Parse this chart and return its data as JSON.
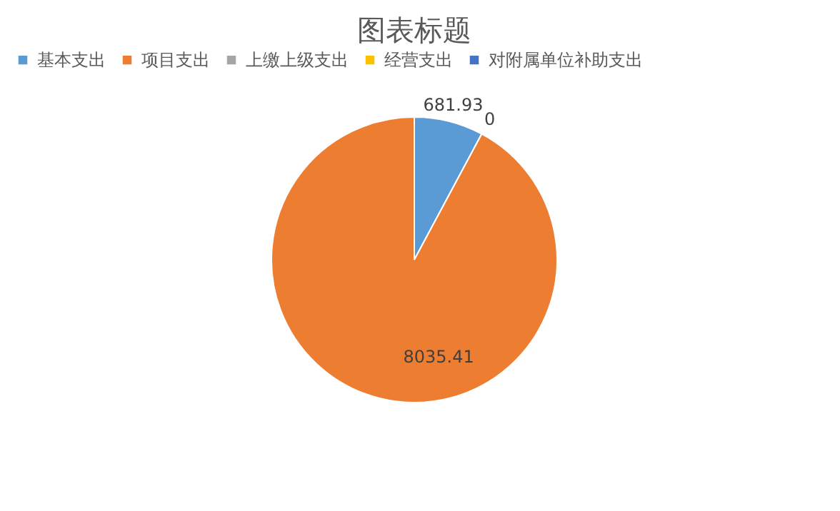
{
  "chart_data": {
    "type": "pie",
    "title": "图表标题",
    "categories": [
      "基本支出",
      "项目支出",
      "上缴上级支出",
      "经营支出",
      "对附属单位补助支出"
    ],
    "values": [
      681.93,
      8035.41,
      0,
      0,
      0
    ],
    "value_labels": [
      "681.93",
      "8035.41",
      "0",
      null,
      null
    ],
    "colors": [
      "#5b9bd5",
      "#ed7d31",
      "#a5a5a5",
      "#ffc000",
      "#4472c4"
    ],
    "legend": "top"
  }
}
